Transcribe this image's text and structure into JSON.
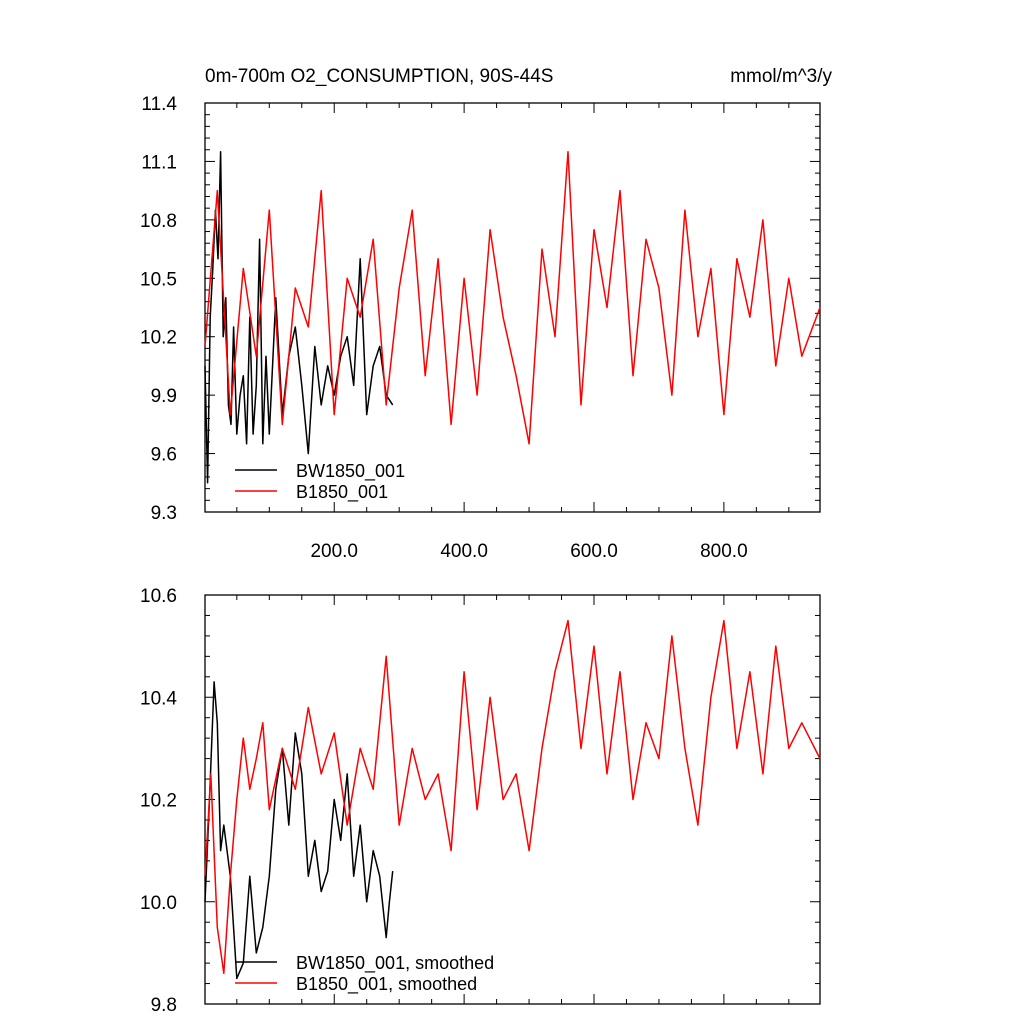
{
  "title_left": "0m-700m O2_CONSUMPTION, 90S-44S",
  "title_right": "mmol/m^3/y",
  "colors": {
    "bw": "#000000",
    "b": "#ff0000",
    "axis": "#000000"
  },
  "chart_data": [
    {
      "type": "line",
      "title": "0m-700m O2_CONSUMPTION, 90S-44S",
      "units": "mmol/m^3/y",
      "xlim": [
        1,
        948
      ],
      "ylim": [
        9.3,
        11.4
      ],
      "x_tick_labels": [
        "200.0",
        "400.0",
        "600.0",
        "800.0"
      ],
      "y_tick_labels": [
        "9.3",
        "9.6",
        "9.9",
        "10.2",
        "10.5",
        "10.8",
        "11.1",
        "11.4"
      ],
      "legend_placement": "bottom-left",
      "series": [
        {
          "name": "BW1850_001",
          "color": "#000000",
          "x": [
            1,
            5,
            9,
            13,
            17,
            21,
            25,
            29,
            33,
            37,
            41,
            45,
            50,
            55,
            60,
            65,
            70,
            75,
            80,
            85,
            90,
            95,
            100,
            110,
            120,
            130,
            140,
            150,
            160,
            170,
            180,
            190,
            200,
            210,
            220,
            230,
            240,
            250,
            260,
            270,
            280,
            290
          ],
          "values": [
            10.05,
            9.45,
            10.3,
            10.55,
            10.85,
            10.6,
            11.15,
            10.2,
            10.4,
            9.85,
            9.75,
            10.25,
            9.7,
            9.9,
            10.0,
            9.65,
            10.3,
            9.7,
            9.95,
            10.7,
            9.65,
            10.1,
            9.7,
            10.4,
            9.8,
            10.1,
            10.25,
            9.95,
            9.6,
            10.15,
            9.85,
            10.05,
            9.9,
            10.1,
            10.2,
            9.95,
            10.6,
            9.8,
            10.05,
            10.15,
            9.9,
            9.85
          ]
        },
        {
          "name": "B1850_001",
          "color": "#ff0000",
          "x": [
            1,
            20,
            40,
            60,
            80,
            100,
            120,
            140,
            160,
            180,
            200,
            220,
            240,
            260,
            280,
            300,
            320,
            340,
            360,
            380,
            400,
            420,
            440,
            460,
            480,
            500,
            520,
            540,
            560,
            580,
            600,
            620,
            640,
            660,
            680,
            700,
            720,
            740,
            760,
            780,
            800,
            820,
            840,
            860,
            880,
            900,
            920,
            948
          ],
          "values": [
            10.15,
            10.95,
            9.8,
            10.55,
            10.1,
            10.85,
            9.75,
            10.45,
            10.25,
            10.95,
            9.8,
            10.5,
            10.3,
            10.7,
            9.85,
            10.45,
            10.85,
            10.0,
            10.6,
            9.75,
            10.5,
            9.9,
            10.75,
            10.3,
            10.0,
            9.65,
            10.65,
            10.2,
            11.15,
            9.85,
            10.75,
            10.35,
            10.95,
            10.0,
            10.7,
            10.45,
            9.9,
            10.85,
            10.2,
            10.55,
            9.8,
            10.6,
            10.3,
            10.8,
            10.05,
            10.5,
            10.1,
            10.35
          ]
        }
      ]
    },
    {
      "type": "line",
      "xlim": [
        1,
        948
      ],
      "ylim": [
        9.8,
        10.6
      ],
      "x_tick_labels": [],
      "y_tick_labels": [
        "9.8",
        "10.0",
        "10.2",
        "10.4",
        "10.6"
      ],
      "legend_placement": "bottom-left",
      "series": [
        {
          "name": "BW1850_001, smoothed",
          "color": "#000000",
          "x": [
            1,
            8,
            15,
            20,
            25,
            30,
            40,
            50,
            60,
            70,
            80,
            90,
            100,
            110,
            120,
            130,
            140,
            150,
            160,
            170,
            180,
            190,
            200,
            210,
            220,
            230,
            240,
            250,
            260,
            270,
            280,
            285,
            290
          ],
          "values": [
            10.0,
            10.2,
            10.43,
            10.35,
            10.1,
            10.15,
            10.05,
            9.85,
            9.88,
            10.05,
            9.9,
            9.95,
            10.05,
            10.22,
            10.3,
            10.15,
            10.33,
            10.25,
            10.05,
            10.12,
            10.02,
            10.06,
            10.2,
            10.12,
            10.25,
            10.05,
            10.15,
            10.0,
            10.1,
            10.05,
            9.93,
            10.0,
            10.06
          ]
        },
        {
          "name": "B1850_001, smoothed",
          "color": "#ff0000",
          "x": [
            1,
            10,
            20,
            30,
            40,
            50,
            60,
            70,
            80,
            90,
            100,
            120,
            140,
            160,
            180,
            200,
            220,
            240,
            260,
            280,
            300,
            320,
            340,
            360,
            380,
            400,
            420,
            440,
            460,
            480,
            500,
            520,
            540,
            560,
            580,
            600,
            620,
            640,
            660,
            680,
            700,
            720,
            740,
            760,
            780,
            800,
            820,
            840,
            860,
            880,
            900,
            920,
            948
          ],
          "values": [
            10.05,
            10.25,
            9.95,
            9.86,
            10.05,
            10.2,
            10.32,
            10.22,
            10.28,
            10.35,
            10.18,
            10.3,
            10.22,
            10.38,
            10.25,
            10.33,
            10.15,
            10.3,
            10.22,
            10.48,
            10.15,
            10.3,
            10.2,
            10.25,
            10.1,
            10.45,
            10.18,
            10.4,
            10.2,
            10.25,
            10.1,
            10.3,
            10.45,
            10.55,
            10.3,
            10.5,
            10.25,
            10.45,
            10.2,
            10.35,
            10.28,
            10.52,
            10.3,
            10.15,
            10.4,
            10.55,
            10.3,
            10.45,
            10.25,
            10.5,
            10.3,
            10.35,
            10.28
          ]
        }
      ]
    }
  ]
}
